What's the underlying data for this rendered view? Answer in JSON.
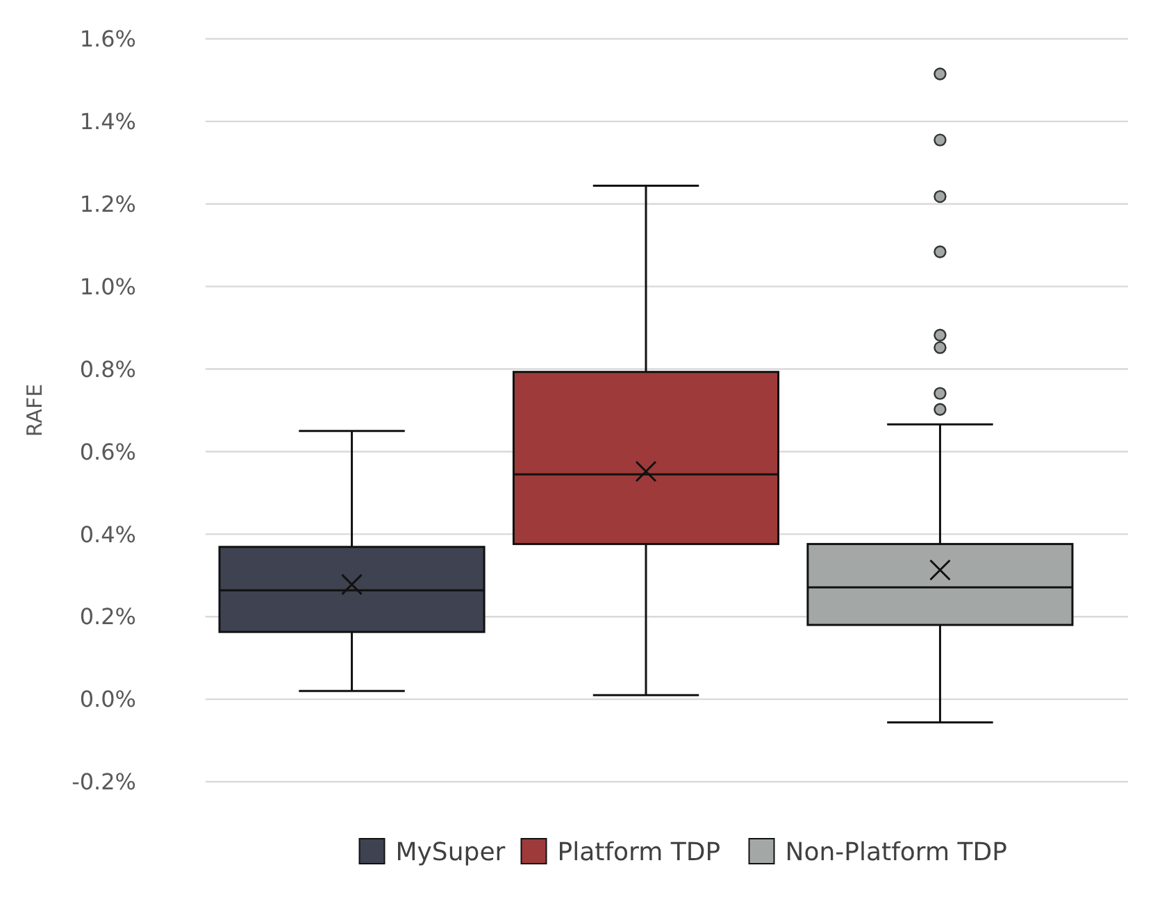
{
  "chart_data": {
    "type": "box",
    "ylabel": "RAFE",
    "categories": [
      null
    ],
    "series": [
      {
        "name": "MySuper",
        "color": "#3f4250",
        "boxes": [
          {
            "low": 0.02,
            "q1": 0.163,
            "median": 0.264,
            "q3": 0.369,
            "high": 0.65,
            "mean": 0.278
          }
        ]
      },
      {
        "name": "Platform TDP",
        "color": "#9e3a3a",
        "boxes": [
          {
            "low": 0.01,
            "q1": 0.376,
            "median": 0.545,
            "q3": 0.793,
            "high": 1.244,
            "mean": 0.552
          }
        ]
      },
      {
        "name": "Non-Platform TDP",
        "color": "#a3a8a6",
        "boxes": [
          {
            "low": -0.056,
            "q1": 0.18,
            "median": 0.271,
            "q3": 0.376,
            "high": 0.666,
            "mean": 0.313,
            "outliers": [
              0.702,
              0.741,
              0.852,
              0.882,
              1.084,
              1.218,
              1.355,
              1.515
            ]
          }
        ]
      }
    ],
    "ylim": [
      -0.2,
      1.6
    ],
    "yticks": [
      {
        "value": -0.2,
        "label": "-0.2%"
      },
      {
        "value": 0,
        "label": "0.0%"
      },
      {
        "value": 0.2,
        "label": "0.2%"
      },
      {
        "value": 0.4,
        "label": "0.4%"
      },
      {
        "value": 0.6,
        "label": "0.6%"
      },
      {
        "value": 0.8,
        "label": "0.8%"
      },
      {
        "value": 1.0,
        "label": "1.0%"
      },
      {
        "value": 1.2,
        "label": "1.2%"
      },
      {
        "value": 1.4,
        "label": "1.4%"
      },
      {
        "value": 1.6,
        "label": "1.6%"
      }
    ],
    "grid": "y",
    "legend": "bottom"
  }
}
